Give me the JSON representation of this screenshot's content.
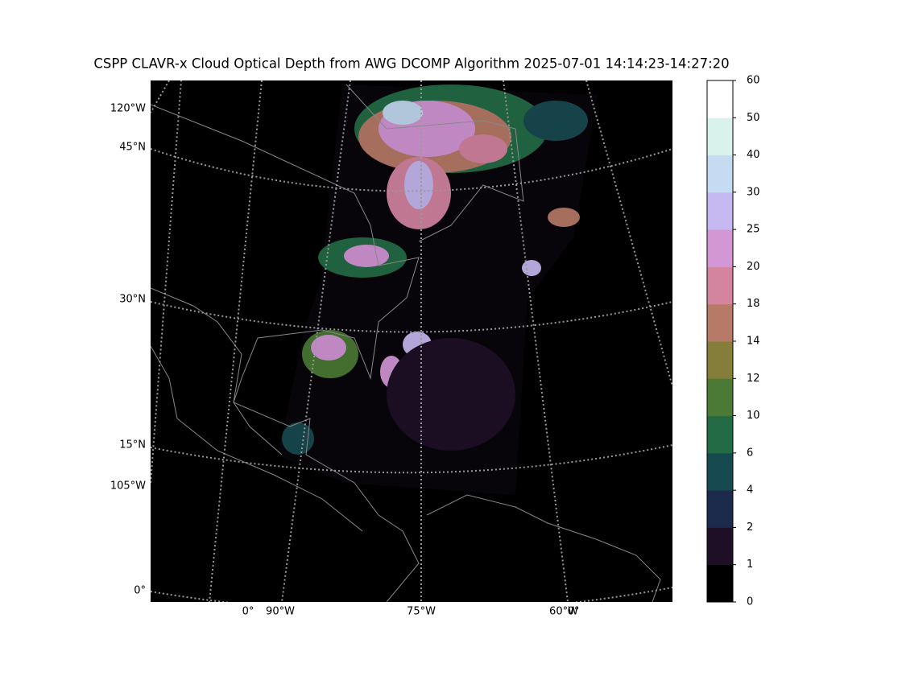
{
  "title": "CSPP CLAVR-x Cloud Optical Depth from AWG DCOMP Algorithm 2025-07-01 14:14:23-14:27:20",
  "map": {
    "left_labels": [
      "120°W",
      "45°N",
      "30°N",
      "15°N",
      "105°W",
      "0°"
    ],
    "bottom_labels": [
      "0°",
      "90°W",
      "75°W",
      "60°W",
      "0°"
    ]
  },
  "colorbar": {
    "ticks": [
      0,
      1,
      2,
      4,
      6,
      10,
      12,
      14,
      18,
      20,
      25,
      30,
      40,
      50,
      60
    ],
    "colors": [
      "#000000",
      "#1e0f26",
      "#1c2a4b",
      "#174a50",
      "#236b45",
      "#4a7a35",
      "#857d3a",
      "#b77a67",
      "#d584a0",
      "#d497d6",
      "#c6b8f0",
      "#c5dbf2",
      "#d9f2ec",
      "#ffffff"
    ]
  }
}
